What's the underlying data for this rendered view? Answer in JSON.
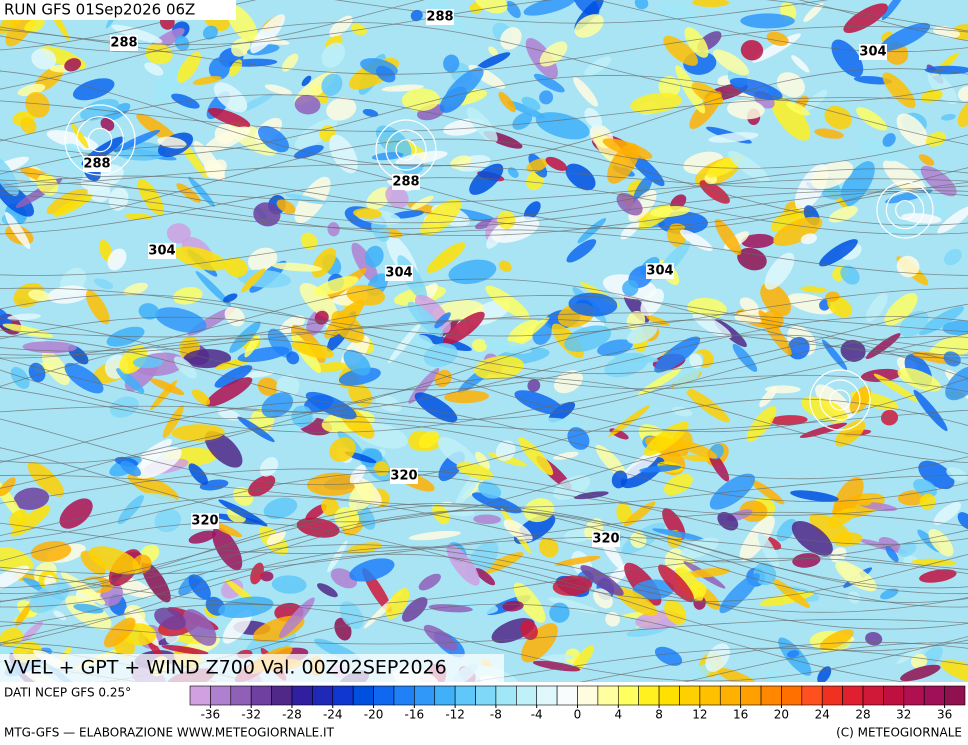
{
  "header": {
    "run": "RUN GFS 01Sep2026 06Z",
    "title": "VVEL + GPT + WIND Z700 Val. 00Z02SEP2026"
  },
  "contour_labels": [
    288,
    288,
    288,
    288,
    304,
    304,
    304,
    304,
    320,
    320,
    320
  ],
  "colorbar": {
    "source": "DATI NCEP GFS 0.25°",
    "ticks": [
      -36,
      -32,
      -28,
      -24,
      -20,
      -16,
      -12,
      -8,
      -4,
      0,
      4,
      8,
      12,
      16,
      20,
      24,
      28,
      32,
      36
    ],
    "colors": [
      "#d0a0e0",
      "#b080d0",
      "#9060b8",
      "#7040a0",
      "#502888",
      "#3020a0",
      "#2028b8",
      "#1038d0",
      "#0050e0",
      "#1068f0",
      "#2080f8",
      "#3098f8",
      "#40b0f8",
      "#60c8f8",
      "#80d8f8",
      "#a0e8f8",
      "#c0f0f8",
      "#e0f8fc",
      "#f8fcfc",
      "#fffce0",
      "#ffffa0",
      "#ffff60",
      "#fff020",
      "#ffe000",
      "#ffd000",
      "#ffc000",
      "#ffb000",
      "#ffa000",
      "#ff8800",
      "#ff7000",
      "#ff5020",
      "#f03020",
      "#e02030",
      "#d01838",
      "#c01040",
      "#b01050",
      "#a01058",
      "#901050"
    ]
  },
  "footer": {
    "left": "MTG-GFS — ELABORAZIONE WWW.METEOGIORNALE.IT",
    "right": "(C) METEOGIORNALE"
  }
}
